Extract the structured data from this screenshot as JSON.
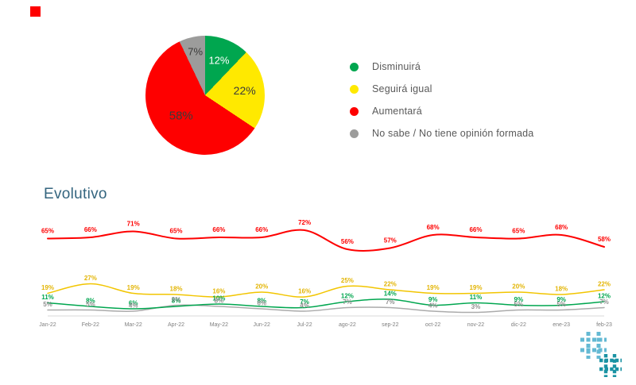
{
  "slide": {
    "section_title": "Evolutivo"
  },
  "legend": {
    "items": [
      {
        "label": "Disminuirá"
      },
      {
        "label": "Seguirá igual"
      },
      {
        "label": "Aumentará"
      },
      {
        "label": "No sabe / No tiene opinión formada"
      }
    ]
  },
  "colors": {
    "green": "#00a64f",
    "yellow_pie": "#ffe900",
    "yellow_line": "#f2c500",
    "red": "#fe0000",
    "gray": "#9c9c9b",
    "title_text": "#34657f",
    "legend_text": "#595959",
    "axis_text": "#7f7f7f"
  },
  "icons": {
    "top_left": "red-square-logo",
    "bottom_right": "hash-pattern-logo"
  },
  "chart_data": [
    {
      "type": "pie",
      "title": "",
      "labels": [
        "Disminuirá",
        "Seguirá igual",
        "Aumentará",
        "No sabe / No tiene opinión formada"
      ],
      "values": [
        12,
        22,
        58,
        7
      ],
      "colors": [
        "#00a64f",
        "#ffe900",
        "#fe0000",
        "#9c9c9b"
      ],
      "text_colors": [
        "#ffffff",
        "#3b3b3a",
        "#3b3b3a",
        "#3b3b3a"
      ],
      "legend_position": "right"
    },
    {
      "type": "line",
      "title": "Evolutivo",
      "categories": [
        "Jan-22",
        "Feb-22",
        "Mar-22",
        "Apr-22",
        "May-22",
        "Jun-22",
        "Jul-22",
        "ago-22",
        "sep-22",
        "oct-22",
        "nov-22",
        "dic-22",
        "ene-23",
        "feb-23"
      ],
      "ylim": [
        0,
        80
      ],
      "grid": false,
      "legend_position": "none",
      "series": [
        {
          "name": "Aumentará",
          "color": "#fe0000",
          "label_color": "#fe0000",
          "values": [
            65,
            66,
            71,
            65,
            66,
            66,
            72,
            56,
            57,
            68,
            66,
            65,
            68,
            58
          ]
        },
        {
          "name": "Seguirá igual",
          "color": "#f2c500",
          "label_color": "#e3b505",
          "values": [
            19,
            27,
            19,
            18,
            16,
            20,
            16,
            25,
            22,
            19,
            19,
            20,
            18,
            22
          ]
        },
        {
          "name": "Disminuirá",
          "color": "#00a64f",
          "label_color": "#00a64f",
          "values": [
            11,
            8,
            6,
            8,
            10,
            8,
            7,
            12,
            14,
            9,
            11,
            9,
            9,
            12
          ]
        },
        {
          "name": "No sabe / No tiene opinión formada",
          "color": "#ababab",
          "label_color": "#8f8f8f",
          "values": [
            5,
            5,
            4,
            9,
            8,
            6,
            4,
            7,
            7,
            4,
            3,
            5,
            5,
            7
          ]
        }
      ]
    }
  ]
}
